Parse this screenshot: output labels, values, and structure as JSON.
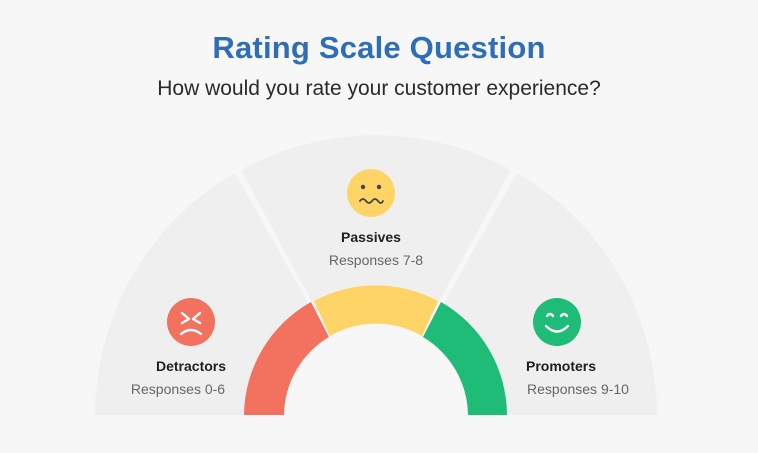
{
  "header": {
    "title": "Rating Scale Question",
    "subtitle": "How would you rate your customer experience?"
  },
  "segments": [
    {
      "name": "Detractors",
      "range": "Responses 0-6",
      "color": "#f2715f",
      "icon": "frowning-face-icon"
    },
    {
      "name": "Passives",
      "range": "Responses 7-8",
      "color": "#ffd467",
      "icon": "grimacing-face-icon"
    },
    {
      "name": "Promoters",
      "range": "Responses 9-10",
      "color": "#1fbc78",
      "icon": "smiling-face-icon"
    }
  ],
  "colors": {
    "title": "#2e6eb8",
    "background": "#f7f7f7",
    "sector": "#efeeee"
  }
}
